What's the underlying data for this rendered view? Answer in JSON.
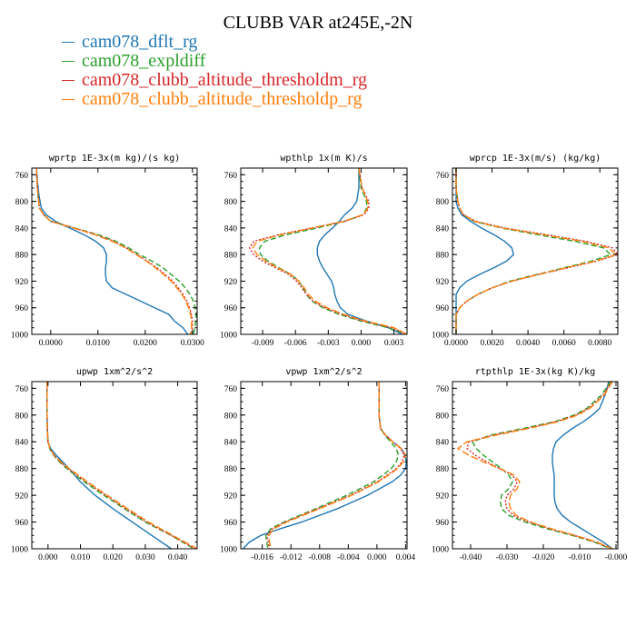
{
  "title": "CLUBB VAR at245E,-2N",
  "legend": [
    {
      "name": "cam078_dflt_rg",
      "color": "#1f77b4",
      "dash": ""
    },
    {
      "name": "cam078_expldiff",
      "color": "#2ca02c",
      "dash": "6,3"
    },
    {
      "name": "cam078_clubb_altitude_thresholdm_rg",
      "color": "#d62728",
      "dash": "2,2"
    },
    {
      "name": "cam078_clubb_altitude_thresholdp_rg",
      "color": "#ff7f0e",
      "dash": "8,3"
    }
  ],
  "chart_data": [
    {
      "type": "line",
      "title": "wprtp  1E-3x(m kg)/(s kg)",
      "xlim": [
        -0.004,
        0.031
      ],
      "ylim": [
        1000,
        750
      ],
      "xticks": [
        0.0,
        0.01,
        0.02,
        0.03
      ],
      "xticklabels": [
        "0.0000",
        "0.0100",
        "0.0200",
        "0.0300"
      ],
      "yticks": [
        760,
        800,
        840,
        880,
        920,
        960,
        1000
      ],
      "y": [
        750,
        770,
        790,
        810,
        820,
        830,
        840,
        850,
        860,
        870,
        880,
        890,
        900,
        910,
        920,
        930,
        940,
        950,
        960,
        970,
        980,
        990,
        1000
      ],
      "series": [
        {
          "values": [
            -0.003,
            -0.0028,
            -0.0025,
            -0.002,
            -0.001,
            0.001,
            0.004,
            0.007,
            0.0095,
            0.0112,
            0.0118,
            0.0118,
            0.0116,
            0.0116,
            0.0118,
            0.013,
            0.016,
            0.019,
            0.022,
            0.025,
            0.0262,
            0.028,
            0.029
          ]
        },
        {
          "values": [
            -0.003,
            -0.0029,
            -0.0027,
            -0.0024,
            -0.0015,
            0.0,
            0.005,
            0.01,
            0.0138,
            0.0165,
            0.0188,
            0.0215,
            0.0238,
            0.0255,
            0.0272,
            0.0285,
            0.0295,
            0.0302,
            0.0306,
            0.0308,
            0.0307,
            0.0305,
            0.0302
          ]
        },
        {
          "values": [
            -0.003,
            -0.0029,
            -0.0027,
            -0.0024,
            -0.0015,
            0.0,
            0.005,
            0.0095,
            0.0133,
            0.016,
            0.0183,
            0.0205,
            0.0225,
            0.0242,
            0.0258,
            0.027,
            0.028,
            0.0288,
            0.0294,
            0.0298,
            0.03,
            0.03,
            0.0298
          ]
        },
        {
          "values": [
            -0.003,
            -0.0029,
            -0.0027,
            -0.0024,
            -0.0015,
            0.0,
            0.0048,
            0.0093,
            0.013,
            0.0158,
            0.0181,
            0.0203,
            0.0222,
            0.0239,
            0.0255,
            0.0267,
            0.0278,
            0.0286,
            0.0292,
            0.0296,
            0.0298,
            0.0298,
            0.0296
          ]
        }
      ]
    },
    {
      "type": "line",
      "title": "wpthlp  1x(m K)/s",
      "xlim": [
        -0.011,
        0.0042
      ],
      "ylim": [
        1000,
        750
      ],
      "xticks": [
        -0.009,
        -0.006,
        -0.003,
        0.0,
        0.003
      ],
      "xticklabels": [
        "-0.009",
        "-0.006",
        "-0.003",
        "0.000",
        "0.003"
      ],
      "yticks": [
        760,
        800,
        840,
        880,
        920,
        960,
        1000
      ],
      "y": [
        750,
        780,
        800,
        810,
        820,
        830,
        840,
        850,
        860,
        870,
        880,
        890,
        900,
        910,
        920,
        930,
        940,
        950,
        960,
        970,
        980,
        990,
        1000
      ],
      "series": [
        {
          "values": [
            -0.0002,
            -0.0002,
            -0.0004,
            -0.0008,
            -0.0015,
            -0.002,
            -0.0026,
            -0.0033,
            -0.0038,
            -0.004,
            -0.004,
            -0.0038,
            -0.0035,
            -0.0031,
            -0.0027,
            -0.0025,
            -0.0024,
            -0.0022,
            -0.0019,
            -0.0012,
            0.0005,
            0.0025,
            0.0038
          ]
        },
        {
          "values": [
            -0.0002,
            0.0,
            0.0005,
            0.0005,
            0.0002,
            -0.0015,
            -0.004,
            -0.0068,
            -0.0088,
            -0.0093,
            -0.0092,
            -0.0085,
            -0.0075,
            -0.0064,
            -0.0057,
            -0.0053,
            -0.005,
            -0.0045,
            -0.0035,
            -0.002,
            0.0,
            0.0025,
            0.0042
          ]
        },
        {
          "values": [
            -0.0002,
            0.0001,
            0.0007,
            0.0007,
            0.0003,
            -0.0015,
            -0.0045,
            -0.0075,
            -0.0098,
            -0.0102,
            -0.0098,
            -0.009,
            -0.0078,
            -0.0066,
            -0.0059,
            -0.0054,
            -0.005,
            -0.0044,
            -0.0033,
            -0.0018,
            0.0002,
            0.0028,
            0.0042
          ]
        },
        {
          "values": [
            -0.0002,
            0.0001,
            0.0006,
            0.0006,
            0.0002,
            -0.0016,
            -0.0044,
            -0.0073,
            -0.0095,
            -0.0099,
            -0.0095,
            -0.0087,
            -0.0076,
            -0.0064,
            -0.0057,
            -0.0052,
            -0.0048,
            -0.0042,
            -0.0031,
            -0.0016,
            0.0004,
            0.003,
            0.0042
          ]
        }
      ]
    },
    {
      "type": "line",
      "title": "wprcp  1E-3x(m/s) (kg/kg)",
      "xlim": [
        -0.0002,
        0.009
      ],
      "ylim": [
        1000,
        750
      ],
      "xticks": [
        0.0,
        0.002,
        0.004,
        0.006,
        0.008
      ],
      "xticklabels": [
        "0.0000",
        "0.0020",
        "0.0040",
        "0.0060",
        "0.0080"
      ],
      "yticks": [
        760,
        800,
        840,
        880,
        920,
        960,
        1000
      ],
      "y": [
        750,
        780,
        800,
        810,
        820,
        830,
        840,
        850,
        860,
        870,
        880,
        890,
        900,
        910,
        920,
        930,
        940,
        950,
        960,
        970,
        980,
        1000
      ],
      "series": [
        {
          "values": [
            0.0,
            0.0,
            0.0,
            0.0001,
            0.0003,
            0.0008,
            0.0014,
            0.0021,
            0.0027,
            0.0031,
            0.0032,
            0.0028,
            0.0021,
            0.0013,
            0.0006,
            0.0002,
            0.0,
            0.0,
            0.0,
            0.0,
            0.0,
            0.0
          ]
        },
        {
          "values": [
            0.0,
            0.0,
            0.0001,
            0.0002,
            0.0004,
            0.001,
            0.0025,
            0.0045,
            0.0066,
            0.0082,
            0.0086,
            0.0075,
            0.006,
            0.0045,
            0.003,
            0.002,
            0.0012,
            0.0006,
            0.0002,
            0.0,
            0.0,
            0.0
          ]
        },
        {
          "values": [
            0.0,
            0.0,
            0.0001,
            0.0002,
            0.0004,
            0.0011,
            0.0027,
            0.005,
            0.0072,
            0.0087,
            0.009,
            0.0078,
            0.0062,
            0.0046,
            0.0031,
            0.002,
            0.0012,
            0.0006,
            0.0002,
            0.0,
            0.0,
            0.0
          ]
        },
        {
          "values": [
            0.0,
            0.0,
            0.0001,
            0.0002,
            0.0004,
            0.001,
            0.0026,
            0.0048,
            0.007,
            0.0085,
            0.0089,
            0.0077,
            0.0061,
            0.0046,
            0.0031,
            0.002,
            0.0012,
            0.0006,
            0.0002,
            0.0,
            0.0,
            0.0
          ]
        }
      ]
    },
    {
      "type": "line",
      "title": "upwp  1xm^2/s^2",
      "xlim": [
        -0.005,
        0.046
      ],
      "ylim": [
        1000,
        750
      ],
      "xticks": [
        0.0,
        0.01,
        0.02,
        0.03,
        0.04
      ],
      "xticklabels": [
        "0.000",
        "0.010",
        "0.020",
        "0.030",
        "0.040"
      ],
      "yticks": [
        760,
        800,
        840,
        880,
        920,
        960,
        1000
      ],
      "y": [
        750,
        800,
        820,
        840,
        850,
        860,
        870,
        880,
        900,
        920,
        940,
        960,
        980,
        1000
      ],
      "series": [
        {
          "values": [
            -0.0003,
            -0.0003,
            -0.0002,
            0.0,
            0.0008,
            0.0025,
            0.0045,
            0.0065,
            0.01,
            0.0145,
            0.02,
            0.026,
            0.032,
            0.038
          ]
        },
        {
          "values": [
            -0.0003,
            -0.0003,
            -0.0002,
            0.0,
            0.0005,
            0.0017,
            0.0035,
            0.0058,
            0.0112,
            0.0172,
            0.0235,
            0.03,
            0.038,
            0.045
          ]
        },
        {
          "values": [
            -0.0003,
            -0.0003,
            -0.0002,
            0.0,
            0.0006,
            0.0018,
            0.0038,
            0.0062,
            0.0118,
            0.0178,
            0.024,
            0.0305,
            0.038,
            0.0455
          ]
        },
        {
          "values": [
            -0.0003,
            -0.0003,
            -0.0002,
            0.0,
            0.0006,
            0.0019,
            0.004,
            0.0065,
            0.0122,
            0.0182,
            0.0245,
            0.031,
            0.0385,
            0.046
          ]
        }
      ]
    },
    {
      "type": "line",
      "title": "vpwp  1xm^2/s^2",
      "xlim": [
        -0.019,
        0.0042
      ],
      "ylim": [
        1000,
        750
      ],
      "xticks": [
        -0.016,
        -0.012,
        -0.008,
        -0.004,
        0.0,
        0.004
      ],
      "xticklabels": [
        "-0.016",
        "-0.012",
        "-0.008",
        "-0.004",
        "0.000",
        "0.004"
      ],
      "yticks": [
        760,
        800,
        840,
        880,
        920,
        960,
        1000
      ],
      "y": [
        750,
        800,
        820,
        830,
        840,
        850,
        860,
        870,
        880,
        890,
        900,
        920,
        940,
        960,
        970,
        980,
        990,
        1000
      ],
      "series": [
        {
          "values": [
            0.0003,
            0.0003,
            0.0005,
            0.0012,
            0.0022,
            0.0034,
            0.0039,
            0.0041,
            0.004,
            0.0033,
            0.0021,
            -0.0013,
            -0.0055,
            -0.0105,
            -0.0135,
            -0.0162,
            -0.0178,
            -0.0187
          ]
        },
        {
          "values": [
            0.0003,
            0.0003,
            0.0005,
            0.0011,
            0.0019,
            0.0027,
            0.003,
            0.0027,
            0.002,
            0.0008,
            -0.0005,
            -0.0042,
            -0.0085,
            -0.013,
            -0.0148,
            -0.0155,
            -0.0154,
            -0.0152
          ]
        },
        {
          "values": [
            0.0003,
            0.0003,
            0.0005,
            0.0012,
            0.0022,
            0.0033,
            0.0038,
            0.0035,
            0.0027,
            0.0014,
            0.0,
            -0.0037,
            -0.0082,
            -0.0128,
            -0.0146,
            -0.0153,
            -0.0152,
            -0.015
          ]
        },
        {
          "values": [
            0.0003,
            0.0003,
            0.0005,
            0.0012,
            0.0022,
            0.0034,
            0.004,
            0.0037,
            0.0029,
            0.0016,
            0.0002,
            -0.0035,
            -0.008,
            -0.0126,
            -0.0144,
            -0.0151,
            -0.015,
            -0.0148
          ]
        }
      ]
    },
    {
      "type": "line",
      "title": "rtpthlp  1E-3x(kg K)/kg",
      "xlim": [
        -0.045,
        0.0005
      ],
      "ylim": [
        1000,
        750
      ],
      "xticks": [
        -0.04,
        -0.03,
        -0.02,
        -0.01,
        0.0
      ],
      "xticklabels": [
        "-0.040",
        "-0.030",
        "-0.020",
        "-0.010",
        "-0.000"
      ],
      "yticks": [
        760,
        800,
        840,
        880,
        920,
        960,
        1000
      ],
      "y": [
        750,
        770,
        790,
        800,
        810,
        820,
        830,
        840,
        850,
        860,
        870,
        880,
        890,
        900,
        910,
        920,
        930,
        940,
        950,
        960,
        970,
        980,
        990,
        1000
      ],
      "series": [
        {
          "values": [
            -0.002,
            -0.003,
            -0.0045,
            -0.0065,
            -0.009,
            -0.012,
            -0.0145,
            -0.0165,
            -0.0172,
            -0.0175,
            -0.0175,
            -0.0173,
            -0.017,
            -0.017,
            -0.017,
            -0.017,
            -0.0168,
            -0.0162,
            -0.0148,
            -0.0125,
            -0.0095,
            -0.0065,
            -0.0035,
            -0.001
          ]
        },
        {
          "values": [
            -0.0015,
            -0.004,
            -0.008,
            -0.0115,
            -0.017,
            -0.0255,
            -0.0345,
            -0.0395,
            -0.0385,
            -0.0365,
            -0.034,
            -0.0315,
            -0.0295,
            -0.0285,
            -0.0295,
            -0.0315,
            -0.0318,
            -0.0315,
            -0.0295,
            -0.025,
            -0.019,
            -0.012,
            -0.006,
            -0.0015
          ]
        },
        {
          "values": [
            -0.0012,
            -0.0035,
            -0.0075,
            -0.011,
            -0.0165,
            -0.0245,
            -0.0338,
            -0.0405,
            -0.041,
            -0.0388,
            -0.0355,
            -0.032,
            -0.0285,
            -0.0272,
            -0.028,
            -0.03,
            -0.0305,
            -0.03,
            -0.0283,
            -0.024,
            -0.0182,
            -0.0115,
            -0.0055,
            -0.0012
          ]
        },
        {
          "values": [
            -0.001,
            -0.0032,
            -0.0072,
            -0.0105,
            -0.016,
            -0.024,
            -0.033,
            -0.041,
            -0.0435,
            -0.0405,
            -0.0365,
            -0.032,
            -0.028,
            -0.0265,
            -0.0272,
            -0.029,
            -0.0295,
            -0.029,
            -0.0275,
            -0.0235,
            -0.0178,
            -0.0112,
            -0.0052,
            -0.001
          ]
        }
      ]
    }
  ]
}
